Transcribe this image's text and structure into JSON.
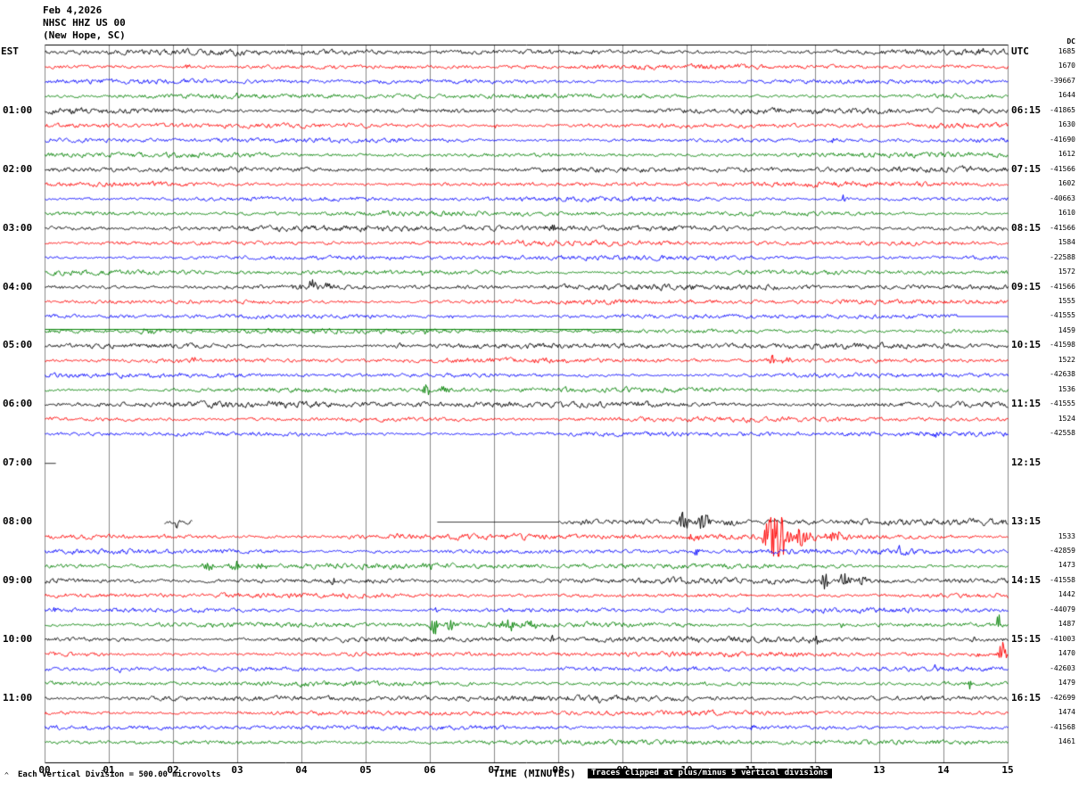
{
  "header": {
    "date": "Feb 4,2026",
    "station": "NHSC HHZ US 00",
    "location": "(New Hope, SC)"
  },
  "columns": {
    "left": "EST",
    "right": "UTC",
    "dc": "DC"
  },
  "footer": {
    "corner_mark": "^",
    "scale_note": "Each Vertical Division =  500.00 microvolts",
    "axis_title": "TIME (MINUTES)",
    "clip_note": "Traces clipped at plus/minus 5 vertical divisions"
  },
  "axis": {
    "minutes": [
      "00",
      "01",
      "02",
      "03",
      "04",
      "05",
      "06",
      "07",
      "08",
      "09",
      "10",
      "11",
      "12",
      "13",
      "14",
      "15"
    ],
    "x_range_minutes": [
      0,
      15
    ]
  },
  "colors": {
    "black": "#000000",
    "red": "#ff0000",
    "blue": "#0000ff",
    "green": "#008000",
    "grid": "#8a8a8a",
    "axis": "#000000"
  },
  "chart_data": {
    "type": "line",
    "subtype": "seismogram-helicorder",
    "title": "NHSC HHZ US 00 (New Hope, SC) Feb 4,2026",
    "xlabel": "TIME (MINUTES)",
    "minutes_per_line": 15,
    "lines_per_hour": 4,
    "color_cycle": [
      "black",
      "red",
      "blue",
      "green"
    ],
    "clip_divisions": 5,
    "microvolts_per_division": 500.0,
    "rows": [
      {
        "est": "",
        "utc": "",
        "dc": "1685",
        "color": "black",
        "amp": 1.15,
        "events": [
          {
            "t": 14.6,
            "a": 2.5,
            "w": 4
          }
        ]
      },
      {
        "est": "",
        "utc": "",
        "dc": "1670",
        "color": "red",
        "amp": 1.0,
        "events": [
          {
            "t": 2.2,
            "a": 2.5,
            "w": 3
          }
        ]
      },
      {
        "est": "",
        "utc": "",
        "dc": "-39667",
        "color": "blue",
        "amp": 0.95,
        "events": []
      },
      {
        "est": "",
        "utc": "",
        "dc": "1644",
        "color": "green",
        "amp": 1.0,
        "events": [
          {
            "t": 3.0,
            "a": 2,
            "w": 3
          }
        ]
      },
      {
        "est": "01:00",
        "utc": "06:15",
        "dc": "-41865",
        "color": "black",
        "amp": 1.15,
        "events": [
          {
            "t": 0.4,
            "a": 2.5,
            "w": 3
          },
          {
            "t": 14.5,
            "a": 3,
            "w": 3
          }
        ]
      },
      {
        "est": "",
        "utc": "",
        "dc": "1630",
        "color": "red",
        "amp": 1.0,
        "events": [
          {
            "t": 7.0,
            "a": 2,
            "w": 3
          }
        ]
      },
      {
        "est": "",
        "utc": "",
        "dc": "-41690",
        "color": "blue",
        "amp": 0.95,
        "events": [
          {
            "t": 12.3,
            "a": 3,
            "w": 3
          }
        ]
      },
      {
        "est": "",
        "utc": "",
        "dc": "1612",
        "color": "green",
        "amp": 1.0,
        "events": []
      },
      {
        "est": "02:00",
        "utc": "07:15",
        "dc": "-41566",
        "color": "black",
        "amp": 1.15,
        "events": [
          {
            "t": 6.0,
            "a": 2.5,
            "w": 4
          }
        ]
      },
      {
        "est": "",
        "utc": "",
        "dc": "1602",
        "color": "red",
        "amp": 1.0,
        "events": [
          {
            "t": 9.3,
            "a": 2,
            "w": 3
          }
        ]
      },
      {
        "est": "",
        "utc": "",
        "dc": "-40663",
        "color": "blue",
        "amp": 0.95,
        "events": [
          {
            "t": 12.45,
            "a": 4,
            "w": 4
          }
        ]
      },
      {
        "est": "",
        "utc": "",
        "dc": "1610",
        "color": "green",
        "amp": 1.0,
        "events": [
          {
            "t": 5.3,
            "a": 2,
            "w": 3
          }
        ]
      },
      {
        "est": "03:00",
        "utc": "08:15",
        "dc": "-41566",
        "color": "black",
        "amp": 1.2,
        "events": [
          {
            "t": 7.9,
            "a": 3,
            "w": 8
          }
        ]
      },
      {
        "est": "",
        "utc": "",
        "dc": "1584",
        "color": "red",
        "amp": 1.0,
        "events": []
      },
      {
        "est": "",
        "utc": "",
        "dc": "-22588",
        "color": "blue",
        "amp": 0.95,
        "events": [
          {
            "t": 3.4,
            "a": 2,
            "w": 3
          }
        ]
      },
      {
        "est": "",
        "utc": "",
        "dc": "1572",
        "color": "green",
        "amp": 1.0,
        "events": [
          {
            "t": 5.9,
            "a": 2.5,
            "w": 3
          }
        ]
      },
      {
        "est": "04:00",
        "utc": "09:15",
        "dc": "-41566",
        "color": "black",
        "amp": 1.15,
        "events": [
          {
            "t": 3.95,
            "a": 3,
            "w": 4
          },
          {
            "t": 4.15,
            "a": 7,
            "w": 4
          },
          {
            "t": 4.4,
            "a": 5,
            "w": 5
          }
        ]
      },
      {
        "est": "",
        "utc": "",
        "dc": "1555",
        "color": "red",
        "amp": 1.0,
        "events": []
      },
      {
        "est": "",
        "utc": "",
        "dc": "-41555",
        "color": "blue",
        "amp": 0.95,
        "flat": [
          [
            14.2,
            15
          ]
        ],
        "events": [
          {
            "t": 6.3,
            "a": 2,
            "w": 3
          }
        ]
      },
      {
        "est": "",
        "utc": "",
        "dc": "1459",
        "color": "green",
        "amp": 1.0,
        "overline": [
          [
            0,
            9
          ]
        ],
        "events": [
          {
            "t": 1.6,
            "a": 2.5,
            "w": 6
          },
          {
            "t": 5.9,
            "a": 2.5,
            "w": 4
          }
        ]
      },
      {
        "est": "05:00",
        "utc": "10:15",
        "dc": "-41598",
        "color": "black",
        "amp": 1.15,
        "events": [
          {
            "t": 5.5,
            "a": 2.5,
            "w": 4
          }
        ]
      },
      {
        "est": "",
        "utc": "",
        "dc": "1522",
        "color": "red",
        "amp": 1.0,
        "events": [
          {
            "t": 2.3,
            "a": 3,
            "w": 3
          },
          {
            "t": 11.3,
            "a": 6,
            "w": 4
          },
          {
            "t": 11.55,
            "a": 4,
            "w": 4
          }
        ]
      },
      {
        "est": "",
        "utc": "",
        "dc": "-42638",
        "color": "blue",
        "amp": 0.95,
        "events": []
      },
      {
        "est": "",
        "utc": "",
        "dc": "1536",
        "color": "green",
        "amp": 1.0,
        "events": [
          {
            "t": 5.95,
            "a": 6,
            "w": 4
          },
          {
            "t": 6.2,
            "a": 4,
            "w": 4
          }
        ]
      },
      {
        "est": "06:00",
        "utc": "11:15",
        "dc": "-41555",
        "color": "black",
        "amp": 1.3,
        "events": [
          {
            "t": 9.3,
            "a": 3,
            "w": 5
          }
        ]
      },
      {
        "est": "",
        "utc": "",
        "dc": "1524",
        "color": "red",
        "amp": 1.0,
        "events": []
      },
      {
        "est": "",
        "utc": "",
        "dc": "-42558",
        "color": "blue",
        "amp": 0.95,
        "events": [
          {
            "t": 13.9,
            "a": 3,
            "w": 3
          }
        ]
      },
      {
        "est": "",
        "utc": "",
        "dc": "",
        "color": "green",
        "missing": true
      },
      {
        "est": "07:00",
        "utc": "12:15",
        "dc": "",
        "color": "black",
        "amp": 0,
        "flat": [
          [
            0,
            0.18
          ]
        ],
        "gaps": [
          [
            0.18,
            15
          ]
        ],
        "events": []
      },
      {
        "est": "",
        "utc": "",
        "dc": "",
        "color": "red",
        "missing": true
      },
      {
        "est": "",
        "utc": "",
        "dc": "",
        "color": "blue",
        "missing": true
      },
      {
        "est": "",
        "utc": "",
        "dc": "",
        "color": "green",
        "missing": true
      },
      {
        "est": "08:00",
        "utc": "13:15",
        "dc": "",
        "color": "black",
        "amp": 1.2,
        "gaps": [
          [
            0,
            1.85
          ],
          [
            2.3,
            6.1
          ]
        ],
        "flat": [
          [
            6.1,
            8.0
          ]
        ],
        "events": [
          {
            "t": 2.05,
            "a": 4,
            "w": 3
          },
          {
            "t": 8.35,
            "a": 3,
            "w": 5
          },
          {
            "t": 9.95,
            "a": 12,
            "w": 4
          },
          {
            "t": 10.25,
            "a": 8,
            "w": 5
          },
          {
            "t": 10.7,
            "a": 4,
            "w": 7
          }
        ]
      },
      {
        "est": "",
        "utc": "",
        "dc": "1533",
        "color": "red",
        "amp": 1.15,
        "events": [
          {
            "t": 5.5,
            "a": 5,
            "w": 4
          },
          {
            "t": 10.1,
            "a": 4,
            "w": 5
          },
          {
            "t": 11.4,
            "a": 40,
            "w": 8
          },
          {
            "t": 11.8,
            "a": 10,
            "w": 8
          },
          {
            "t": 12.3,
            "a": 5,
            "w": 10
          }
        ]
      },
      {
        "est": "",
        "utc": "",
        "dc": "-42859",
        "color": "blue",
        "amp": 1.0,
        "events": [
          {
            "t": 10.15,
            "a": 4,
            "w": 3
          },
          {
            "t": 13.3,
            "a": 7,
            "w": 3
          },
          {
            "t": 13.5,
            "a": 4,
            "w": 4
          }
        ]
      },
      {
        "est": "",
        "utc": "",
        "dc": "1473",
        "color": "green",
        "amp": 1.1,
        "events": [
          {
            "t": 2.55,
            "a": 5,
            "w": 5
          },
          {
            "t": 2.95,
            "a": 6,
            "w": 4
          },
          {
            "t": 3.35,
            "a": 3,
            "w": 5
          },
          {
            "t": 6.0,
            "a": 3,
            "w": 3
          }
        ]
      },
      {
        "est": "09:00",
        "utc": "14:15",
        "dc": "-41558",
        "color": "black",
        "amp": 1.15,
        "events": [
          {
            "t": 4.5,
            "a": 2.5,
            "w": 3
          },
          {
            "t": 12.15,
            "a": 8,
            "w": 4
          },
          {
            "t": 12.45,
            "a": 9,
            "w": 5
          },
          {
            "t": 12.75,
            "a": 5,
            "w": 5
          }
        ]
      },
      {
        "est": "",
        "utc": "",
        "dc": "1442",
        "color": "red",
        "amp": 1.0,
        "events": [
          {
            "t": 0.3,
            "a": 2,
            "w": 2
          }
        ]
      },
      {
        "est": "",
        "utc": "",
        "dc": "-44079",
        "color": "blue",
        "amp": 0.95,
        "events": [
          {
            "t": 0.15,
            "a": 3,
            "w": 2
          },
          {
            "t": 6.1,
            "a": 2.5,
            "w": 3
          }
        ]
      },
      {
        "est": "",
        "utc": "",
        "dc": "1487",
        "color": "green",
        "amp": 1.05,
        "events": [
          {
            "t": 6.05,
            "a": 14,
            "w": 3
          },
          {
            "t": 6.3,
            "a": 6,
            "w": 4
          },
          {
            "t": 7.2,
            "a": 7,
            "w": 6
          },
          {
            "t": 7.55,
            "a": 5,
            "w": 5
          },
          {
            "t": 12.4,
            "a": 3,
            "w": 2
          },
          {
            "t": 14.85,
            "a": 12,
            "w": 2
          }
        ]
      },
      {
        "est": "10:00",
        "utc": "15:15",
        "dc": "-41003",
        "color": "black",
        "amp": 1.15,
        "events": [
          {
            "t": 7.9,
            "a": 3,
            "w": 3
          },
          {
            "t": 12.0,
            "a": 4,
            "w": 5
          },
          {
            "t": 14.5,
            "a": 3,
            "w": 4
          }
        ]
      },
      {
        "est": "",
        "utc": "",
        "dc": "1470",
        "color": "red",
        "amp": 1.0,
        "events": [
          {
            "t": 14.55,
            "a": 4,
            "w": 3
          },
          {
            "t": 14.9,
            "a": 14,
            "w": 3
          }
        ]
      },
      {
        "est": "",
        "utc": "",
        "dc": "-42603",
        "color": "blue",
        "amp": 0.95,
        "events": [
          {
            "t": 1.15,
            "a": 3,
            "w": 2
          },
          {
            "t": 13.9,
            "a": 3,
            "w": 3
          }
        ]
      },
      {
        "est": "",
        "utc": "",
        "dc": "1479",
        "color": "green",
        "amp": 1.0,
        "events": [
          {
            "t": 14.4,
            "a": 9,
            "w": 1.5
          }
        ]
      },
      {
        "est": "11:00",
        "utc": "16:15",
        "dc": "-42699",
        "color": "black",
        "amp": 1.15,
        "events": [
          {
            "t": 8.6,
            "a": 2.5,
            "w": 3
          }
        ]
      },
      {
        "est": "",
        "utc": "",
        "dc": "1474",
        "color": "red",
        "amp": 1.0,
        "events": [
          {
            "t": 5.9,
            "a": 2.5,
            "w": 3
          }
        ]
      },
      {
        "est": "",
        "utc": "",
        "dc": "-41568",
        "color": "blue",
        "amp": 0.95,
        "events": [
          {
            "t": 11.0,
            "a": 2.5,
            "w": 3
          }
        ]
      },
      {
        "est": "",
        "utc": "",
        "dc": "1461",
        "color": "green",
        "amp": 1.0,
        "events": []
      }
    ]
  }
}
